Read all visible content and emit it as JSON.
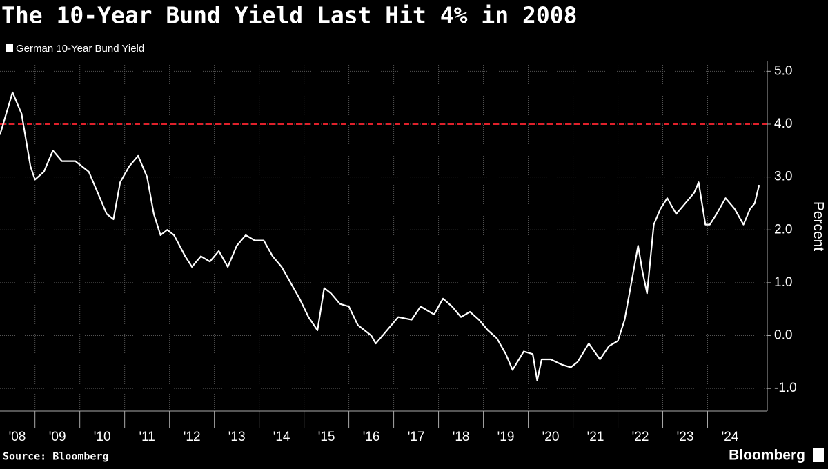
{
  "chart_data": {
    "type": "line",
    "title": "The 10-Year Bund Yield Last Hit 4% in 2008",
    "y_label": "Percent",
    "source": "Source: Bloomberg",
    "logo": "Bloomberg",
    "grid": true,
    "reference_line": {
      "value": 4.0,
      "color": "#e0202a"
    },
    "xlim": [
      2008.22,
      2025.3
    ],
    "ylim": [
      -1.35,
      5.2
    ],
    "xticks": [
      {
        "value": 2008,
        "label": "'08"
      },
      {
        "value": 2009,
        "label": "'09"
      },
      {
        "value": 2010,
        "label": "'10"
      },
      {
        "value": 2011,
        "label": "'11"
      },
      {
        "value": 2012,
        "label": "'12"
      },
      {
        "value": 2013,
        "label": "'13"
      },
      {
        "value": 2014,
        "label": "'14"
      },
      {
        "value": 2015,
        "label": "'15"
      },
      {
        "value": 2016,
        "label": "'16"
      },
      {
        "value": 2017,
        "label": "'17"
      },
      {
        "value": 2018,
        "label": "'18"
      },
      {
        "value": 2019,
        "label": "'19"
      },
      {
        "value": 2020,
        "label": "'20"
      },
      {
        "value": 2021,
        "label": "'21"
      },
      {
        "value": 2022,
        "label": "'22"
      },
      {
        "value": 2023,
        "label": "'23"
      },
      {
        "value": 2024,
        "label": "'24"
      }
    ],
    "yticks": [
      {
        "value": 5,
        "label": "5.0"
      },
      {
        "value": 4,
        "label": "4.0"
      },
      {
        "value": 3,
        "label": "3.0"
      },
      {
        "value": 2,
        "label": "2.0"
      },
      {
        "value": 1,
        "label": "1.0"
      },
      {
        "value": 0,
        "label": "0.0"
      },
      {
        "value": -1,
        "label": "-1.0"
      }
    ],
    "x": [
      2008.22,
      2008.5,
      2008.7,
      2008.9,
      2009.0,
      2009.2,
      2009.4,
      2009.6,
      2009.9,
      2010.2,
      2010.4,
      2010.6,
      2010.75,
      2010.9,
      2011.1,
      2011.3,
      2011.5,
      2011.65,
      2011.8,
      2011.95,
      2012.1,
      2012.35,
      2012.5,
      2012.7,
      2012.9,
      2013.1,
      2013.3,
      2013.5,
      2013.7,
      2013.9,
      2014.1,
      2014.3,
      2014.5,
      2014.7,
      2014.9,
      2015.1,
      2015.3,
      2015.45,
      2015.6,
      2015.8,
      2016.0,
      2016.2,
      2016.5,
      2016.6,
      2016.9,
      2017.1,
      2017.4,
      2017.6,
      2017.9,
      2018.1,
      2018.3,
      2018.5,
      2018.7,
      2018.9,
      2019.1,
      2019.3,
      2019.5,
      2019.65,
      2019.9,
      2020.1,
      2020.2,
      2020.3,
      2020.5,
      2020.75,
      2020.95,
      2021.1,
      2021.35,
      2021.6,
      2021.8,
      2022.0,
      2022.15,
      2022.3,
      2022.45,
      2022.55,
      2022.65,
      2022.8,
      2022.95,
      2023.1,
      2023.3,
      2023.5,
      2023.7,
      2023.8,
      2023.95,
      2024.05,
      2024.2,
      2024.4,
      2024.6,
      2024.8,
      2024.95,
      2025.05,
      2025.15
    ],
    "series": [
      {
        "name": "German 10-Year Bund Yield",
        "color": "#ffffff",
        "values": [
          3.8,
          4.6,
          4.2,
          3.2,
          2.95,
          3.1,
          3.5,
          3.3,
          3.3,
          3.1,
          2.7,
          2.3,
          2.2,
          2.9,
          3.2,
          3.4,
          3.0,
          2.3,
          1.9,
          2.0,
          1.9,
          1.5,
          1.3,
          1.5,
          1.4,
          1.6,
          1.3,
          1.7,
          1.9,
          1.8,
          1.8,
          1.5,
          1.3,
          1.0,
          0.7,
          0.35,
          0.1,
          0.9,
          0.8,
          0.6,
          0.55,
          0.2,
          0.0,
          -0.15,
          0.15,
          0.35,
          0.3,
          0.55,
          0.4,
          0.7,
          0.55,
          0.35,
          0.45,
          0.3,
          0.1,
          -0.05,
          -0.35,
          -0.65,
          -0.3,
          -0.35,
          -0.85,
          -0.45,
          -0.45,
          -0.55,
          -0.6,
          -0.5,
          -0.15,
          -0.45,
          -0.2,
          -0.1,
          0.3,
          1.0,
          1.7,
          1.2,
          0.8,
          2.1,
          2.4,
          2.6,
          2.3,
          2.5,
          2.7,
          2.9,
          2.1,
          2.1,
          2.3,
          2.6,
          2.4,
          2.1,
          2.4,
          2.5,
          2.85
        ]
      }
    ]
  }
}
